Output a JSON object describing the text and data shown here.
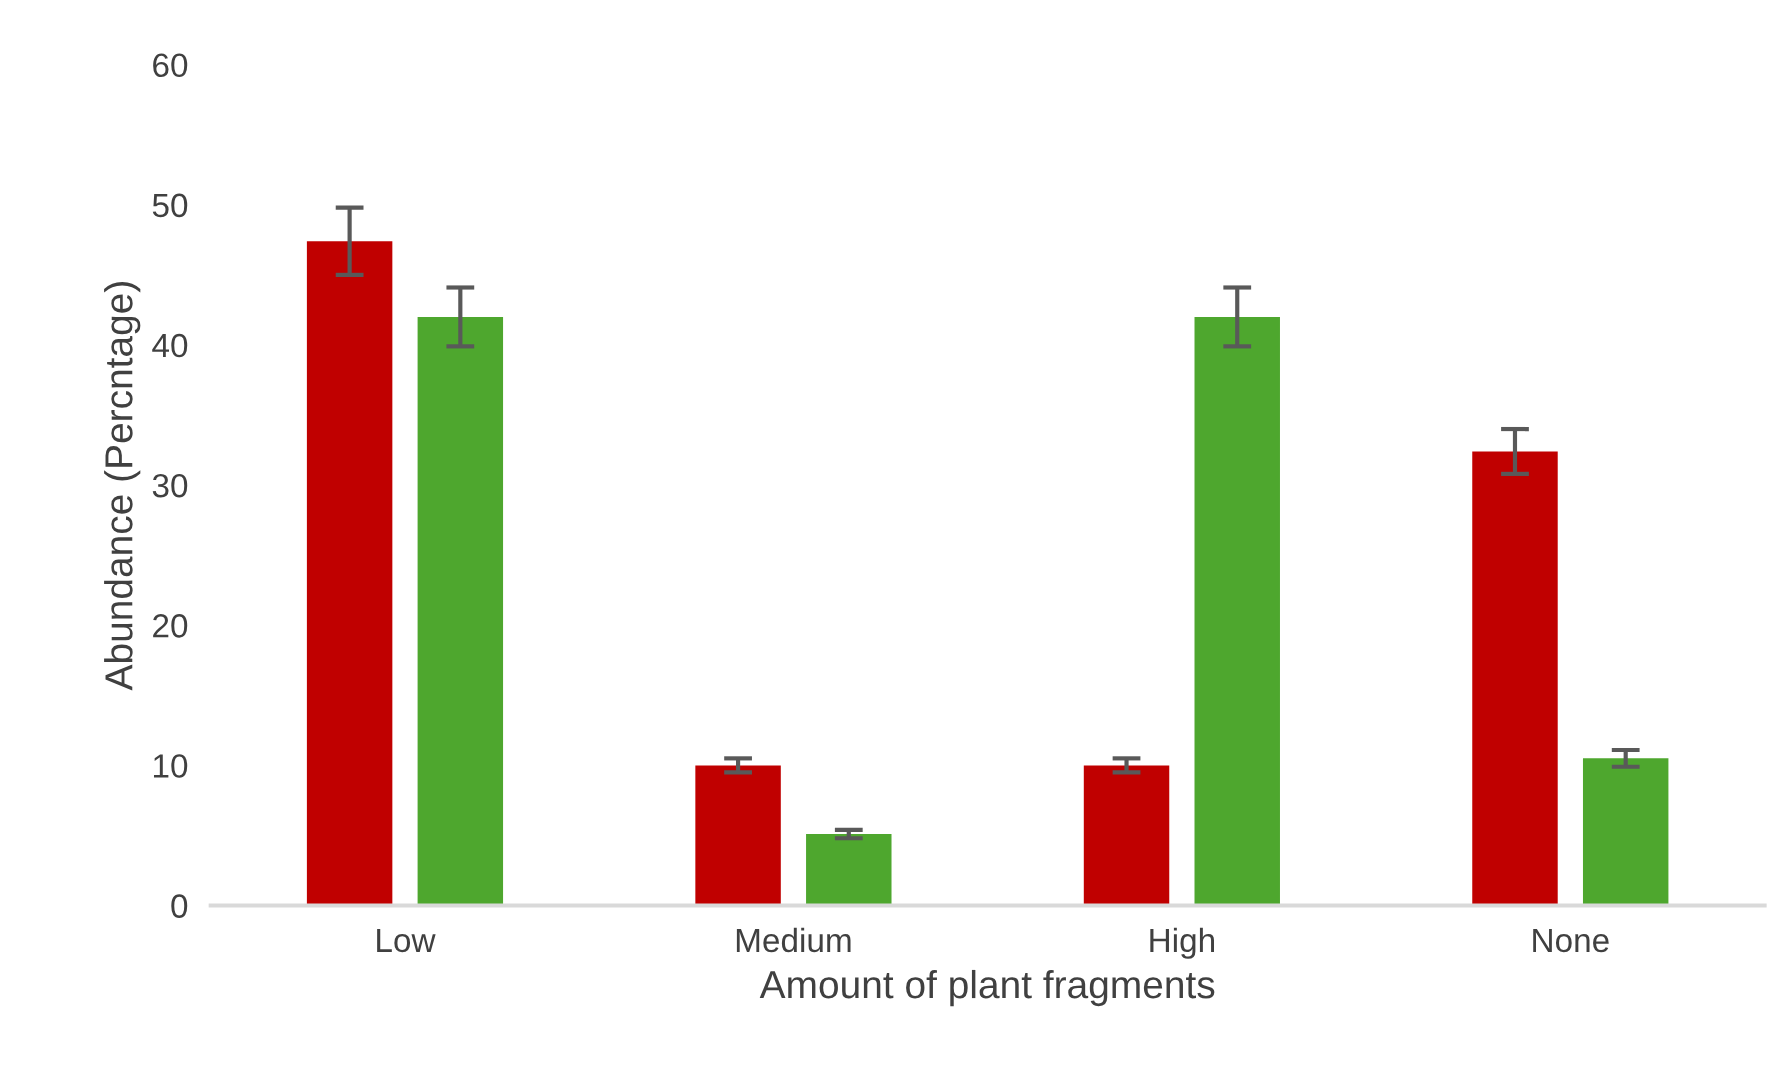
{
  "chart_data": {
    "type": "bar",
    "xlabel": "Amount of plant fragments",
    "ylabel": "Abundance (Percntage)",
    "categories": [
      "Low",
      "Medium",
      "High",
      "None"
    ],
    "ylim": [
      0,
      60
    ],
    "yticks": [
      0,
      10,
      20,
      30,
      40,
      50,
      60
    ],
    "grid": false,
    "series": [
      {
        "color": "#c00000",
        "values": [
          47.4,
          10.0,
          10.0,
          32.4
        ],
        "errors": [
          2.4,
          0.5,
          0.5,
          1.6
        ]
      },
      {
        "color": "#4ea72e",
        "values": [
          42.0,
          5.1,
          42.0,
          10.5
        ],
        "errors": [
          2.1,
          0.3,
          2.1,
          0.6
        ]
      }
    ]
  }
}
